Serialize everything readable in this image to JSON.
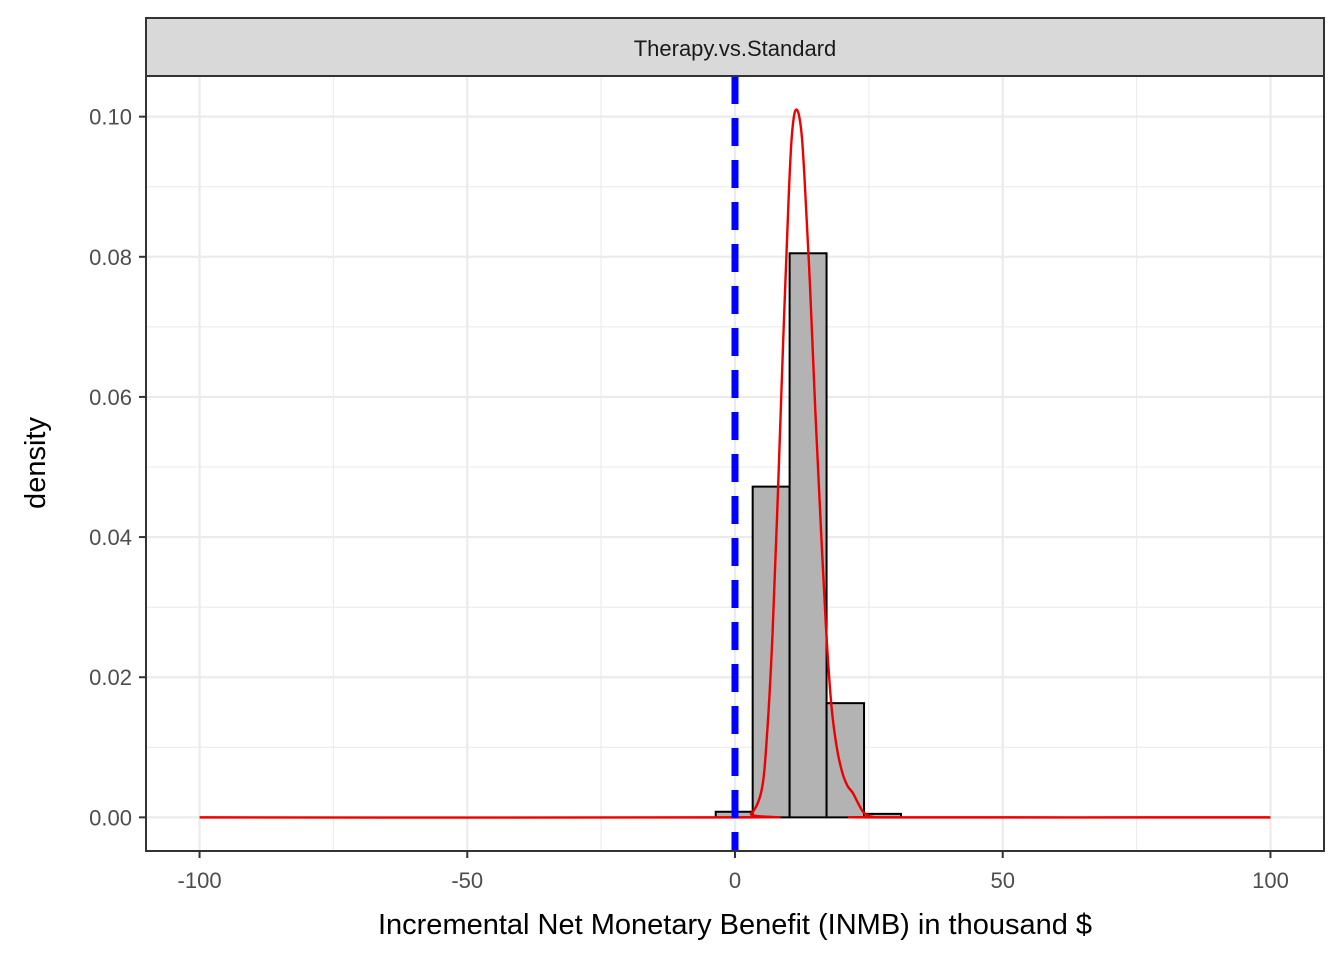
{
  "chart_data": {
    "type": "histogram+density",
    "facet_label": "Therapy.vs.Standard",
    "xlabel": "Incremental Net Monetary Benefit (INMB) in thousand $",
    "ylabel": "density",
    "xlim": [
      -110,
      110
    ],
    "ylim": [
      -0.0048,
      0.1058
    ],
    "x_ticks": [
      -100,
      -50,
      0,
      50,
      100
    ],
    "x_tick_labels": [
      "-100",
      "-50",
      "0",
      "50",
      "100"
    ],
    "y_ticks": [
      0,
      0.02,
      0.04,
      0.06,
      0.08,
      0.1
    ],
    "y_tick_labels": [
      "0.00",
      "0.02",
      "0.04",
      "0.06",
      "0.08",
      "0.10"
    ],
    "grid": true,
    "histogram": {
      "fill": "#b3b3b3",
      "stroke": "#000000",
      "bins": [
        {
          "x0": -3.6,
          "x1": 3.3,
          "density": 0.0008
        },
        {
          "x0": 3.3,
          "x1": 10.2,
          "density": 0.0472
        },
        {
          "x0": 10.2,
          "x1": 17.1,
          "density": 0.0805
        },
        {
          "x0": 17.1,
          "x1": 24.1,
          "density": 0.0163
        },
        {
          "x0": 24.1,
          "x1": 31.0,
          "density": 0.0005
        }
      ]
    },
    "density_curve": {
      "color": "#ee0000",
      "x": [
        -100,
        0,
        3,
        5,
        6,
        7,
        8,
        9,
        10,
        10.5,
        11,
        11.5,
        12,
        12.5,
        13,
        14,
        15,
        16,
        17,
        18,
        19,
        20,
        21,
        22,
        23,
        24,
        25,
        26,
        27,
        100
      ],
      "y": [
        0,
        0,
        0.0005,
        0.004,
        0.012,
        0.026,
        0.046,
        0.068,
        0.088,
        0.096,
        0.1,
        0.101,
        0.1,
        0.097,
        0.091,
        0.076,
        0.058,
        0.042,
        0.027,
        0.016,
        0.01,
        0.0065,
        0.0045,
        0.0035,
        0.002,
        0.0007,
        0.0002,
        5e-05,
        0,
        0
      ]
    },
    "reference_line": {
      "x": 0,
      "color": "#0000ff",
      "style": "dashed"
    }
  }
}
